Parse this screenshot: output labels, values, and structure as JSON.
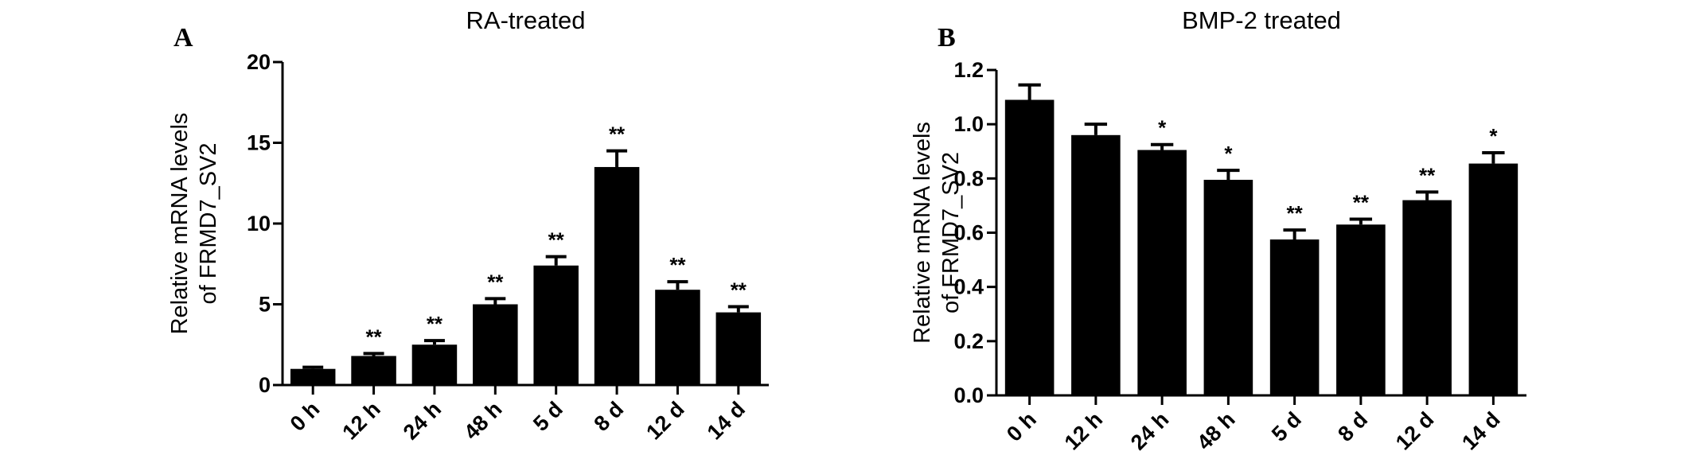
{
  "chart_data": [
    {
      "type": "bar",
      "panel": "A",
      "title": "RA-treated",
      "ylabel_lines": [
        "Relative mRNA levels",
        "of FRMD7_SV2"
      ],
      "xlabel": "",
      "categories": [
        "0 h",
        "12 h",
        "24 h",
        "48 h",
        "5 d",
        "8 d",
        "12 d",
        "14 d"
      ],
      "values": [
        1.0,
        1.8,
        2.5,
        5.0,
        7.4,
        13.5,
        5.9,
        4.5
      ],
      "errors": [
        0.1,
        0.15,
        0.25,
        0.35,
        0.55,
        1.0,
        0.5,
        0.35
      ],
      "significance": [
        "",
        "**",
        "**",
        "**",
        "**",
        "**",
        "**",
        "**"
      ],
      "ylim": [
        0,
        20
      ],
      "yticks": [
        0,
        5,
        10,
        15,
        20
      ],
      "ytick_labels": [
        "0",
        "5",
        "10",
        "15",
        "20"
      ],
      "grid": false,
      "bar_color": "#000000"
    },
    {
      "type": "bar",
      "panel": "B",
      "title": "BMP-2 treated",
      "ylabel_lines": [
        "Relative mRNA levels",
        "of FRMD7_SV2"
      ],
      "xlabel": "",
      "categories": [
        "0 h",
        "12 h",
        "24 h",
        "48 h",
        "5 d",
        "8 d",
        "12 d",
        "14 d"
      ],
      "values": [
        1.09,
        0.96,
        0.905,
        0.795,
        0.575,
        0.63,
        0.72,
        0.855
      ],
      "errors": [
        0.055,
        0.04,
        0.02,
        0.035,
        0.035,
        0.02,
        0.03,
        0.04
      ],
      "significance": [
        "",
        "",
        "*",
        "*",
        "**",
        "**",
        "**",
        "*"
      ],
      "ylim": [
        0,
        1.2
      ],
      "yticks": [
        0,
        0.2,
        0.4,
        0.6,
        0.8,
        1.0,
        1.2
      ],
      "ytick_labels": [
        "0.0",
        "0.2",
        "0.4",
        "0.6",
        "0.8",
        "1.0",
        "1.2"
      ],
      "grid": false,
      "bar_color": "#000000"
    }
  ]
}
